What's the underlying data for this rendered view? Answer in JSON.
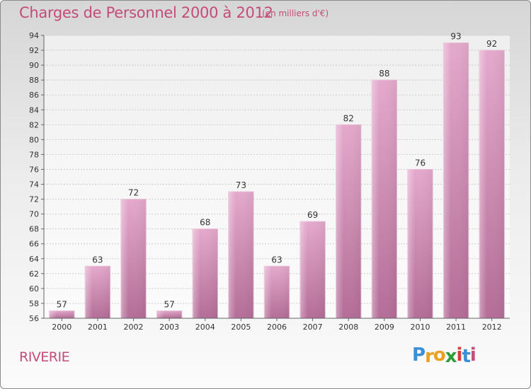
{
  "title": "Charges de Personnel 2000 à 2012",
  "subtitle": "(en milliers d'€)",
  "commune": "RIVERIE",
  "logo": {
    "letters": [
      "P",
      "r",
      "o",
      "x",
      "i",
      "t",
      "i"
    ],
    "colors": [
      "#3b8fd6",
      "#e8a21d",
      "#e8a21d",
      "#2e9d3a",
      "#d93a3a",
      "#3b8fd6",
      "#c34c78"
    ]
  },
  "colors": {
    "bar": "#c985ac",
    "bar_light": "#e2a8cb",
    "accent": "#c34c78",
    "grid": "#cccccc"
  },
  "chart_data": {
    "type": "bar",
    "categories": [
      "2000",
      "2001",
      "2002",
      "2003",
      "2004",
      "2005",
      "2006",
      "2007",
      "2008",
      "2009",
      "2010",
      "2011",
      "2012"
    ],
    "values": [
      57,
      63,
      72,
      57,
      68,
      73,
      63,
      69,
      82,
      88,
      76,
      93,
      92
    ],
    "title": "Charges de Personnel 2000 à 2012",
    "xlabel": "",
    "ylabel": "",
    "ylim": [
      56,
      94
    ],
    "yticks": [
      56,
      58,
      60,
      62,
      64,
      66,
      68,
      70,
      72,
      74,
      76,
      78,
      80,
      82,
      84,
      86,
      88,
      90,
      92,
      94
    ],
    "grid": true,
    "legend": "none"
  }
}
